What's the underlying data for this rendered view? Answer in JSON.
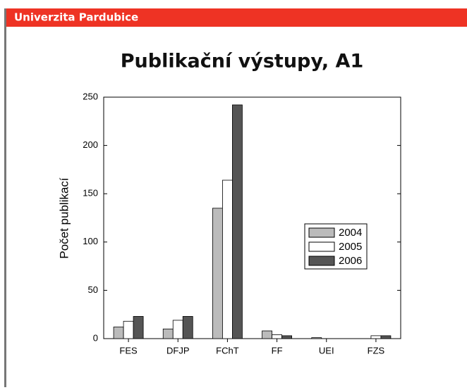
{
  "header": {
    "title": "Univerzita Pardubice"
  },
  "chart_data": {
    "type": "bar",
    "title": "Publikační výstupy, A1",
    "y_label": "Počet publikací",
    "categories": [
      "FES",
      "DFJP",
      "FChT",
      "FF",
      "UEI",
      "FZS"
    ],
    "series": [
      {
        "name": "2004",
        "color": "#bbbbbb",
        "values": [
          12,
          10,
          135,
          8,
          1,
          0
        ]
      },
      {
        "name": "2005",
        "color": "#ffffff",
        "values": [
          18,
          19,
          164,
          4,
          0,
          3
        ]
      },
      {
        "name": "2006",
        "color": "#555555",
        "values": [
          23,
          23,
          242,
          3,
          0,
          3
        ]
      }
    ],
    "ylim": [
      0,
      250
    ],
    "yticks": [
      0,
      50,
      100,
      150,
      200,
      250
    ],
    "grid": false,
    "legend": "right"
  }
}
